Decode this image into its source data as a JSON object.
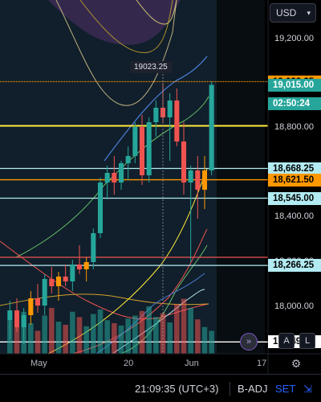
{
  "header": {
    "currency": "USD"
  },
  "price_axis": {
    "labels": [
      "19,200.00",
      "18,800.00",
      "18,400.00",
      "18,200.00",
      "18,000.00"
    ]
  },
  "price_tags": [
    {
      "value": "19,028.25",
      "bg": "#ff9800",
      "fg": "#000000"
    },
    {
      "value": "19,015.00",
      "bg": "#26a69a",
      "fg": "#ffffff"
    },
    {
      "value": "02:50:24",
      "bg": "#26a69a",
      "fg": "#ffffff"
    },
    {
      "value": "18,668.25",
      "bg": "#b2ebf2",
      "fg": "#000000"
    },
    {
      "value": "18,621.50",
      "bg": "#ff9800",
      "fg": "#000000"
    },
    {
      "value": "18,545.00",
      "bg": "#b2ebf2",
      "fg": "#000000"
    },
    {
      "value": "18,266.25",
      "bg": "#b2ebf2",
      "fg": "#000000"
    },
    {
      "value": "17,949.00",
      "bg": "#ffffff",
      "fg": "#000000"
    }
  ],
  "hover_label": "19023.25",
  "time_axis": [
    "May",
    "20",
    "Jun",
    "17"
  ],
  "buttons": {
    "goto_realtime": "»",
    "auto_scale": "A",
    "log_scale": "L",
    "settings": "⚙"
  },
  "footer": {
    "time": "21:09:35 (UTC+3)",
    "adjustment": "B-ADJ",
    "session": "SET"
  },
  "chart_data": {
    "type": "candlestick",
    "ylim": [
      17900,
      19300
    ],
    "colors": {
      "up": "#26a69a",
      "down": "#ef5350",
      "highlight": "#ff9800"
    },
    "candles": [
      {
        "o": 18040,
        "h": 18120,
        "l": 17960,
        "c": 18080
      },
      {
        "o": 18080,
        "h": 18130,
        "l": 17990,
        "c": 18010
      },
      {
        "o": 18010,
        "h": 18090,
        "l": 17940,
        "c": 18060
      },
      {
        "o": 18060,
        "h": 18160,
        "l": 18020,
        "c": 18130
      },
      {
        "o": 18130,
        "h": 18190,
        "l": 18070,
        "c": 18100
      },
      {
        "o": 18100,
        "h": 18230,
        "l": 18060,
        "c": 18210
      },
      {
        "o": 18210,
        "h": 18260,
        "l": 18150,
        "c": 18180
      },
      {
        "o": 18180,
        "h": 18240,
        "l": 18120,
        "c": 18220
      },
      {
        "o": 18220,
        "h": 18270,
        "l": 18180,
        "c": 18200
      },
      {
        "o": 18200,
        "h": 18290,
        "l": 18160,
        "c": 18270
      },
      {
        "o": 18270,
        "h": 18350,
        "l": 18230,
        "c": 18250
      },
      {
        "o": 18250,
        "h": 18300,
        "l": 18200,
        "c": 18280
      },
      {
        "o": 18280,
        "h": 18420,
        "l": 18250,
        "c": 18400
      },
      {
        "o": 18400,
        "h": 18630,
        "l": 18380,
        "c": 18610
      },
      {
        "o": 18610,
        "h": 18680,
        "l": 18540,
        "c": 18650
      },
      {
        "o": 18650,
        "h": 18720,
        "l": 18560,
        "c": 18610
      },
      {
        "o": 18610,
        "h": 18700,
        "l": 18580,
        "c": 18690
      },
      {
        "o": 18690,
        "h": 18760,
        "l": 18620,
        "c": 18720
      },
      {
        "o": 18720,
        "h": 18860,
        "l": 18690,
        "c": 18840
      },
      {
        "o": 18840,
        "h": 18890,
        "l": 18600,
        "c": 18640
      },
      {
        "o": 18640,
        "h": 18880,
        "l": 18610,
        "c": 18860
      },
      {
        "o": 18860,
        "h": 18950,
        "l": 18800,
        "c": 18920
      },
      {
        "o": 18920,
        "h": 19023.25,
        "l": 18860,
        "c": 18880
      },
      {
        "o": 18880,
        "h": 18980,
        "l": 18700,
        "c": 18950
      },
      {
        "o": 18950,
        "h": 19000,
        "l": 18760,
        "c": 18780
      },
      {
        "o": 18780,
        "h": 18860,
        "l": 18560,
        "c": 18610
      },
      {
        "o": 18610,
        "h": 18680,
        "l": 18280,
        "c": 18660
      },
      {
        "o": 18660,
        "h": 18720,
        "l": 18460,
        "c": 18580
      },
      {
        "o": 18580,
        "h": 18720,
        "l": 18500,
        "c": 18660
      },
      {
        "o": 18660,
        "h": 19028.25,
        "l": 18640,
        "c": 19015
      }
    ],
    "highlighted_candles": [
      3,
      7,
      11,
      28
    ],
    "horizontal_levels": [
      {
        "price": 19028.25,
        "color": "#ff9800",
        "dashed": true
      },
      {
        "price": 18845,
        "color": "#ffeb3b",
        "dashed": false
      },
      {
        "price": 18668.25,
        "color": "#b2ebf2",
        "dashed": false
      },
      {
        "price": 18621.5,
        "color": "#ff9800",
        "dashed": false
      },
      {
        "price": 18545.0,
        "color": "#b2ebf2",
        "dashed": false
      },
      {
        "price": 18300,
        "color": "#ef5350",
        "dashed": false
      },
      {
        "price": 18266.25,
        "color": "#b2ebf2",
        "dashed": false
      },
      {
        "price": 17949.0,
        "color": "#ffffff",
        "dashed": false
      }
    ],
    "volume": [
      0.45,
      0.35,
      0.55,
      0.4,
      0.3,
      0.5,
      0.6,
      0.42,
      0.38,
      0.55,
      0.48,
      0.36,
      0.52,
      0.58,
      0.44,
      0.4,
      0.37,
      0.46,
      0.5,
      0.56,
      0.62,
      0.48,
      0.53,
      0.41,
      0.65,
      0.72,
      0.6,
      0.45,
      0.35,
      0.3
    ]
  }
}
